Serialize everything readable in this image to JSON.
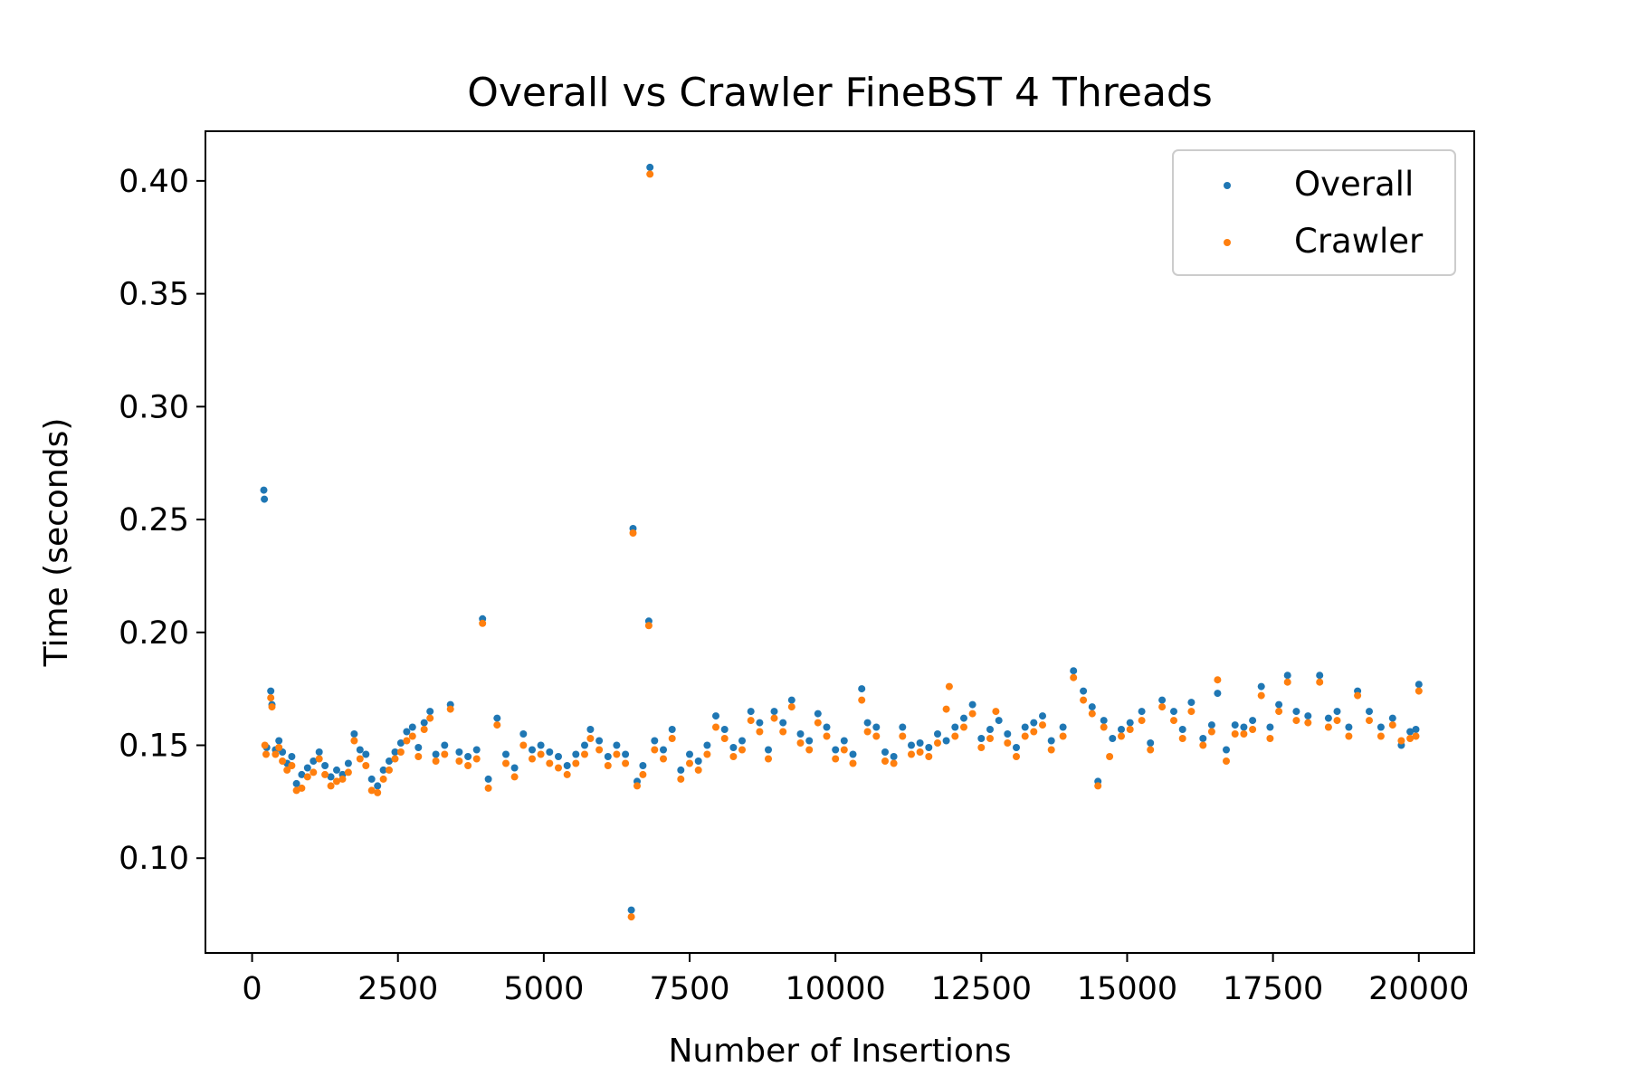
{
  "chart_data": {
    "type": "scatter",
    "title": "Overall vs Crawler FineBST 4 Threads",
    "xlabel": "Number of Insertions",
    "ylabel": "Time (seconds)",
    "xlim": [
      -800,
      20950
    ],
    "ylim": [
      0.058,
      0.422
    ],
    "x_ticks": [
      0,
      2500,
      5000,
      7500,
      10000,
      12500,
      15000,
      17500,
      20000
    ],
    "x_tick_labels": [
      "0",
      "2500",
      "5000",
      "7500",
      "10000",
      "12500",
      "15000",
      "17500",
      "20000"
    ],
    "y_ticks": [
      0.1,
      0.15,
      0.2,
      0.25,
      0.3,
      0.35,
      0.4
    ],
    "y_tick_labels": [
      "0.10",
      "0.15",
      "0.20",
      "0.25",
      "0.30",
      "0.35",
      "0.40"
    ],
    "grid": false,
    "legend": {
      "position": "top-right",
      "entries": [
        "Overall",
        "Crawler"
      ]
    },
    "series": [
      {
        "name": "Overall",
        "color": "#1f77b4",
        "points": [
          [
            200,
            0.263
          ],
          [
            210,
            0.259
          ],
          [
            250,
            0.149
          ],
          [
            320,
            0.174
          ],
          [
            340,
            0.168
          ],
          [
            400,
            0.148
          ],
          [
            460,
            0.152
          ],
          [
            520,
            0.147
          ],
          [
            600,
            0.142
          ],
          [
            680,
            0.145
          ],
          [
            760,
            0.133
          ],
          [
            850,
            0.137
          ],
          [
            950,
            0.14
          ],
          [
            1050,
            0.143
          ],
          [
            1150,
            0.147
          ],
          [
            1250,
            0.141
          ],
          [
            1350,
            0.136
          ],
          [
            1450,
            0.139
          ],
          [
            1550,
            0.137
          ],
          [
            1650,
            0.142
          ],
          [
            1750,
            0.155
          ],
          [
            1850,
            0.148
          ],
          [
            1950,
            0.146
          ],
          [
            2050,
            0.135
          ],
          [
            2150,
            0.132
          ],
          [
            2250,
            0.139
          ],
          [
            2350,
            0.143
          ],
          [
            2450,
            0.147
          ],
          [
            2550,
            0.151
          ],
          [
            2650,
            0.156
          ],
          [
            2750,
            0.158
          ],
          [
            2850,
            0.149
          ],
          [
            2950,
            0.16
          ],
          [
            3050,
            0.165
          ],
          [
            3150,
            0.146
          ],
          [
            3300,
            0.15
          ],
          [
            3400,
            0.168
          ],
          [
            3550,
            0.147
          ],
          [
            3700,
            0.145
          ],
          [
            3850,
            0.148
          ],
          [
            3950,
            0.206
          ],
          [
            4050,
            0.135
          ],
          [
            4200,
            0.162
          ],
          [
            4350,
            0.146
          ],
          [
            4500,
            0.14
          ],
          [
            4650,
            0.155
          ],
          [
            4800,
            0.148
          ],
          [
            4950,
            0.15
          ],
          [
            5100,
            0.147
          ],
          [
            5250,
            0.145
          ],
          [
            5400,
            0.141
          ],
          [
            5550,
            0.146
          ],
          [
            5700,
            0.15
          ],
          [
            5800,
            0.157
          ],
          [
            5950,
            0.152
          ],
          [
            6100,
            0.145
          ],
          [
            6250,
            0.15
          ],
          [
            6400,
            0.146
          ],
          [
            6500,
            0.077
          ],
          [
            6530,
            0.246
          ],
          [
            6600,
            0.134
          ],
          [
            6700,
            0.141
          ],
          [
            6800,
            0.205
          ],
          [
            6820,
            0.406
          ],
          [
            6900,
            0.152
          ],
          [
            7050,
            0.148
          ],
          [
            7200,
            0.157
          ],
          [
            7350,
            0.139
          ],
          [
            7500,
            0.146
          ],
          [
            7650,
            0.143
          ],
          [
            7800,
            0.15
          ],
          [
            7950,
            0.163
          ],
          [
            8100,
            0.157
          ],
          [
            8250,
            0.149
          ],
          [
            8400,
            0.152
          ],
          [
            8550,
            0.165
          ],
          [
            8700,
            0.16
          ],
          [
            8850,
            0.148
          ],
          [
            8950,
            0.165
          ],
          [
            9100,
            0.16
          ],
          [
            9250,
            0.17
          ],
          [
            9400,
            0.155
          ],
          [
            9550,
            0.152
          ],
          [
            9700,
            0.164
          ],
          [
            9850,
            0.158
          ],
          [
            10000,
            0.148
          ],
          [
            10150,
            0.152
          ],
          [
            10300,
            0.146
          ],
          [
            10450,
            0.175
          ],
          [
            10550,
            0.16
          ],
          [
            10700,
            0.158
          ],
          [
            10850,
            0.147
          ],
          [
            11000,
            0.145
          ],
          [
            11150,
            0.158
          ],
          [
            11300,
            0.15
          ],
          [
            11450,
            0.151
          ],
          [
            11600,
            0.149
          ],
          [
            11750,
            0.155
          ],
          [
            11900,
            0.152
          ],
          [
            12050,
            0.158
          ],
          [
            12200,
            0.162
          ],
          [
            12350,
            0.168
          ],
          [
            12500,
            0.153
          ],
          [
            12650,
            0.157
          ],
          [
            12800,
            0.161
          ],
          [
            12950,
            0.155
          ],
          [
            13100,
            0.149
          ],
          [
            13250,
            0.158
          ],
          [
            13400,
            0.16
          ],
          [
            13550,
            0.163
          ],
          [
            13700,
            0.152
          ],
          [
            13900,
            0.158
          ],
          [
            14080,
            0.183
          ],
          [
            14250,
            0.174
          ],
          [
            14400,
            0.167
          ],
          [
            14500,
            0.134
          ],
          [
            14600,
            0.161
          ],
          [
            14750,
            0.153
          ],
          [
            14900,
            0.157
          ],
          [
            15050,
            0.16
          ],
          [
            15250,
            0.165
          ],
          [
            15400,
            0.151
          ],
          [
            15600,
            0.17
          ],
          [
            15800,
            0.165
          ],
          [
            15950,
            0.157
          ],
          [
            16100,
            0.169
          ],
          [
            16300,
            0.153
          ],
          [
            16450,
            0.159
          ],
          [
            16550,
            0.173
          ],
          [
            16700,
            0.148
          ],
          [
            16850,
            0.159
          ],
          [
            17000,
            0.158
          ],
          [
            17150,
            0.161
          ],
          [
            17300,
            0.176
          ],
          [
            17450,
            0.158
          ],
          [
            17600,
            0.168
          ],
          [
            17750,
            0.181
          ],
          [
            17900,
            0.165
          ],
          [
            18100,
            0.163
          ],
          [
            18300,
            0.181
          ],
          [
            18450,
            0.162
          ],
          [
            18600,
            0.165
          ],
          [
            18800,
            0.158
          ],
          [
            18950,
            0.174
          ],
          [
            19150,
            0.165
          ],
          [
            19350,
            0.158
          ],
          [
            19550,
            0.162
          ],
          [
            19700,
            0.15
          ],
          [
            19850,
            0.156
          ],
          [
            19950,
            0.157
          ],
          [
            20000,
            0.177
          ]
        ]
      },
      {
        "name": "Crawler",
        "color": "#ff7f0e",
        "points": [
          [
            220,
            0.15
          ],
          [
            240,
            0.146
          ],
          [
            320,
            0.171
          ],
          [
            340,
            0.167
          ],
          [
            400,
            0.146
          ],
          [
            460,
            0.149
          ],
          [
            520,
            0.143
          ],
          [
            600,
            0.139
          ],
          [
            680,
            0.141
          ],
          [
            760,
            0.13
          ],
          [
            850,
            0.131
          ],
          [
            950,
            0.136
          ],
          [
            1050,
            0.138
          ],
          [
            1150,
            0.144
          ],
          [
            1250,
            0.137
          ],
          [
            1350,
            0.132
          ],
          [
            1450,
            0.134
          ],
          [
            1550,
            0.135
          ],
          [
            1650,
            0.138
          ],
          [
            1750,
            0.152
          ],
          [
            1850,
            0.144
          ],
          [
            1950,
            0.141
          ],
          [
            2050,
            0.13
          ],
          [
            2150,
            0.129
          ],
          [
            2250,
            0.135
          ],
          [
            2350,
            0.139
          ],
          [
            2450,
            0.144
          ],
          [
            2550,
            0.147
          ],
          [
            2650,
            0.152
          ],
          [
            2750,
            0.154
          ],
          [
            2850,
            0.145
          ],
          [
            2950,
            0.157
          ],
          [
            3050,
            0.162
          ],
          [
            3150,
            0.143
          ],
          [
            3300,
            0.146
          ],
          [
            3400,
            0.166
          ],
          [
            3550,
            0.143
          ],
          [
            3700,
            0.141
          ],
          [
            3850,
            0.144
          ],
          [
            3950,
            0.204
          ],
          [
            4050,
            0.131
          ],
          [
            4200,
            0.159
          ],
          [
            4350,
            0.142
          ],
          [
            4500,
            0.136
          ],
          [
            4650,
            0.15
          ],
          [
            4800,
            0.144
          ],
          [
            4950,
            0.146
          ],
          [
            5100,
            0.142
          ],
          [
            5250,
            0.14
          ],
          [
            5400,
            0.137
          ],
          [
            5550,
            0.142
          ],
          [
            5700,
            0.146
          ],
          [
            5800,
            0.153
          ],
          [
            5950,
            0.148
          ],
          [
            6100,
            0.141
          ],
          [
            6250,
            0.146
          ],
          [
            6400,
            0.142
          ],
          [
            6500,
            0.074
          ],
          [
            6530,
            0.244
          ],
          [
            6600,
            0.132
          ],
          [
            6700,
            0.137
          ],
          [
            6800,
            0.203
          ],
          [
            6820,
            0.403
          ],
          [
            6900,
            0.148
          ],
          [
            7050,
            0.144
          ],
          [
            7200,
            0.153
          ],
          [
            7350,
            0.135
          ],
          [
            7500,
            0.142
          ],
          [
            7650,
            0.139
          ],
          [
            7800,
            0.146
          ],
          [
            7950,
            0.158
          ],
          [
            8100,
            0.153
          ],
          [
            8250,
            0.145
          ],
          [
            8400,
            0.148
          ],
          [
            8550,
            0.161
          ],
          [
            8700,
            0.156
          ],
          [
            8850,
            0.144
          ],
          [
            8950,
            0.162
          ],
          [
            9100,
            0.156
          ],
          [
            9250,
            0.167
          ],
          [
            9400,
            0.151
          ],
          [
            9550,
            0.148
          ],
          [
            9700,
            0.16
          ],
          [
            9850,
            0.154
          ],
          [
            10000,
            0.144
          ],
          [
            10150,
            0.148
          ],
          [
            10300,
            0.142
          ],
          [
            10450,
            0.17
          ],
          [
            10550,
            0.156
          ],
          [
            10700,
            0.154
          ],
          [
            10850,
            0.143
          ],
          [
            11000,
            0.142
          ],
          [
            11150,
            0.154
          ],
          [
            11300,
            0.146
          ],
          [
            11450,
            0.147
          ],
          [
            11600,
            0.145
          ],
          [
            11750,
            0.151
          ],
          [
            11900,
            0.166
          ],
          [
            11950,
            0.176
          ],
          [
            12050,
            0.154
          ],
          [
            12200,
            0.158
          ],
          [
            12350,
            0.164
          ],
          [
            12500,
            0.149
          ],
          [
            12650,
            0.153
          ],
          [
            12750,
            0.165
          ],
          [
            12950,
            0.151
          ],
          [
            13100,
            0.145
          ],
          [
            13250,
            0.154
          ],
          [
            13400,
            0.156
          ],
          [
            13550,
            0.159
          ],
          [
            13700,
            0.148
          ],
          [
            13900,
            0.154
          ],
          [
            14080,
            0.18
          ],
          [
            14250,
            0.17
          ],
          [
            14400,
            0.164
          ],
          [
            14500,
            0.132
          ],
          [
            14600,
            0.158
          ],
          [
            14700,
            0.145
          ],
          [
            14900,
            0.154
          ],
          [
            15050,
            0.157
          ],
          [
            15250,
            0.161
          ],
          [
            15400,
            0.148
          ],
          [
            15600,
            0.167
          ],
          [
            15800,
            0.161
          ],
          [
            15950,
            0.153
          ],
          [
            16100,
            0.165
          ],
          [
            16300,
            0.15
          ],
          [
            16450,
            0.156
          ],
          [
            16550,
            0.179
          ],
          [
            16700,
            0.143
          ],
          [
            16850,
            0.155
          ],
          [
            17000,
            0.155
          ],
          [
            17150,
            0.157
          ],
          [
            17300,
            0.172
          ],
          [
            17450,
            0.153
          ],
          [
            17600,
            0.165
          ],
          [
            17750,
            0.178
          ],
          [
            17900,
            0.161
          ],
          [
            18100,
            0.16
          ],
          [
            18300,
            0.178
          ],
          [
            18450,
            0.158
          ],
          [
            18600,
            0.161
          ],
          [
            18800,
            0.154
          ],
          [
            18950,
            0.172
          ],
          [
            19150,
            0.161
          ],
          [
            19350,
            0.154
          ],
          [
            19550,
            0.159
          ],
          [
            19700,
            0.152
          ],
          [
            19850,
            0.153
          ],
          [
            19950,
            0.154
          ],
          [
            20000,
            0.174
          ]
        ]
      }
    ]
  }
}
